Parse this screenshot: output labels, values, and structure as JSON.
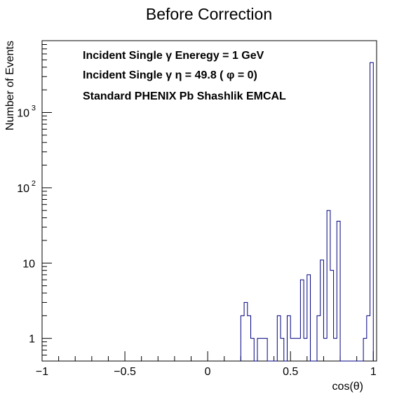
{
  "chart_data": {
    "type": "histogram",
    "title": "Before Correction",
    "xlabel": "cos(θ)",
    "ylabel": "Number of Events",
    "xlim": [
      -1,
      1.02
    ],
    "ylim": [
      0.5,
      9000
    ],
    "log_y": true,
    "grid": false,
    "legend": "none",
    "x_ticks": [
      {
        "value": -1,
        "label": "−1"
      },
      {
        "value": -0.5,
        "label": "−0.5"
      },
      {
        "value": 0,
        "label": "0"
      },
      {
        "value": 0.5,
        "label": "0.5"
      },
      {
        "value": 1,
        "label": "1"
      }
    ],
    "y_ticks": [
      {
        "value": 1,
        "base": "1",
        "exp": ""
      },
      {
        "value": 10,
        "base": "10",
        "exp": ""
      },
      {
        "value": 100,
        "base": "10",
        "exp": "2"
      },
      {
        "value": 1000,
        "base": "10",
        "exp": "3"
      }
    ],
    "annotations": [
      "Incident Single   γ Eneregy = 1 GeV",
      "Incident Single   γ  η = 49.8 ( φ = 0)",
      "Standard PHENIX Pb Shashlik EMCAL"
    ],
    "line_color": "#000080",
    "bin_width": 0.02,
    "bins": [
      {
        "x": 0.2,
        "y": 2
      },
      {
        "x": 0.22,
        "y": 3
      },
      {
        "x": 0.24,
        "y": 2
      },
      {
        "x": 0.26,
        "y": 1
      },
      {
        "x": 0.3,
        "y": 1
      },
      {
        "x": 0.32,
        "y": 1
      },
      {
        "x": 0.34,
        "y": 1
      },
      {
        "x": 0.42,
        "y": 2
      },
      {
        "x": 0.44,
        "y": 1
      },
      {
        "x": 0.48,
        "y": 2
      },
      {
        "x": 0.5,
        "y": 1
      },
      {
        "x": 0.52,
        "y": 1
      },
      {
        "x": 0.54,
        "y": 1
      },
      {
        "x": 0.56,
        "y": 6
      },
      {
        "x": 0.58,
        "y": 1
      },
      {
        "x": 0.6,
        "y": 7
      },
      {
        "x": 0.66,
        "y": 2
      },
      {
        "x": 0.68,
        "y": 11
      },
      {
        "x": 0.7,
        "y": 1
      },
      {
        "x": 0.72,
        "y": 50
      },
      {
        "x": 0.74,
        "y": 8
      },
      {
        "x": 0.76,
        "y": 1
      },
      {
        "x": 0.78,
        "y": 36
      },
      {
        "x": 0.94,
        "y": 1
      },
      {
        "x": 0.96,
        "y": 2
      },
      {
        "x": 0.98,
        "y": 4600
      }
    ]
  }
}
